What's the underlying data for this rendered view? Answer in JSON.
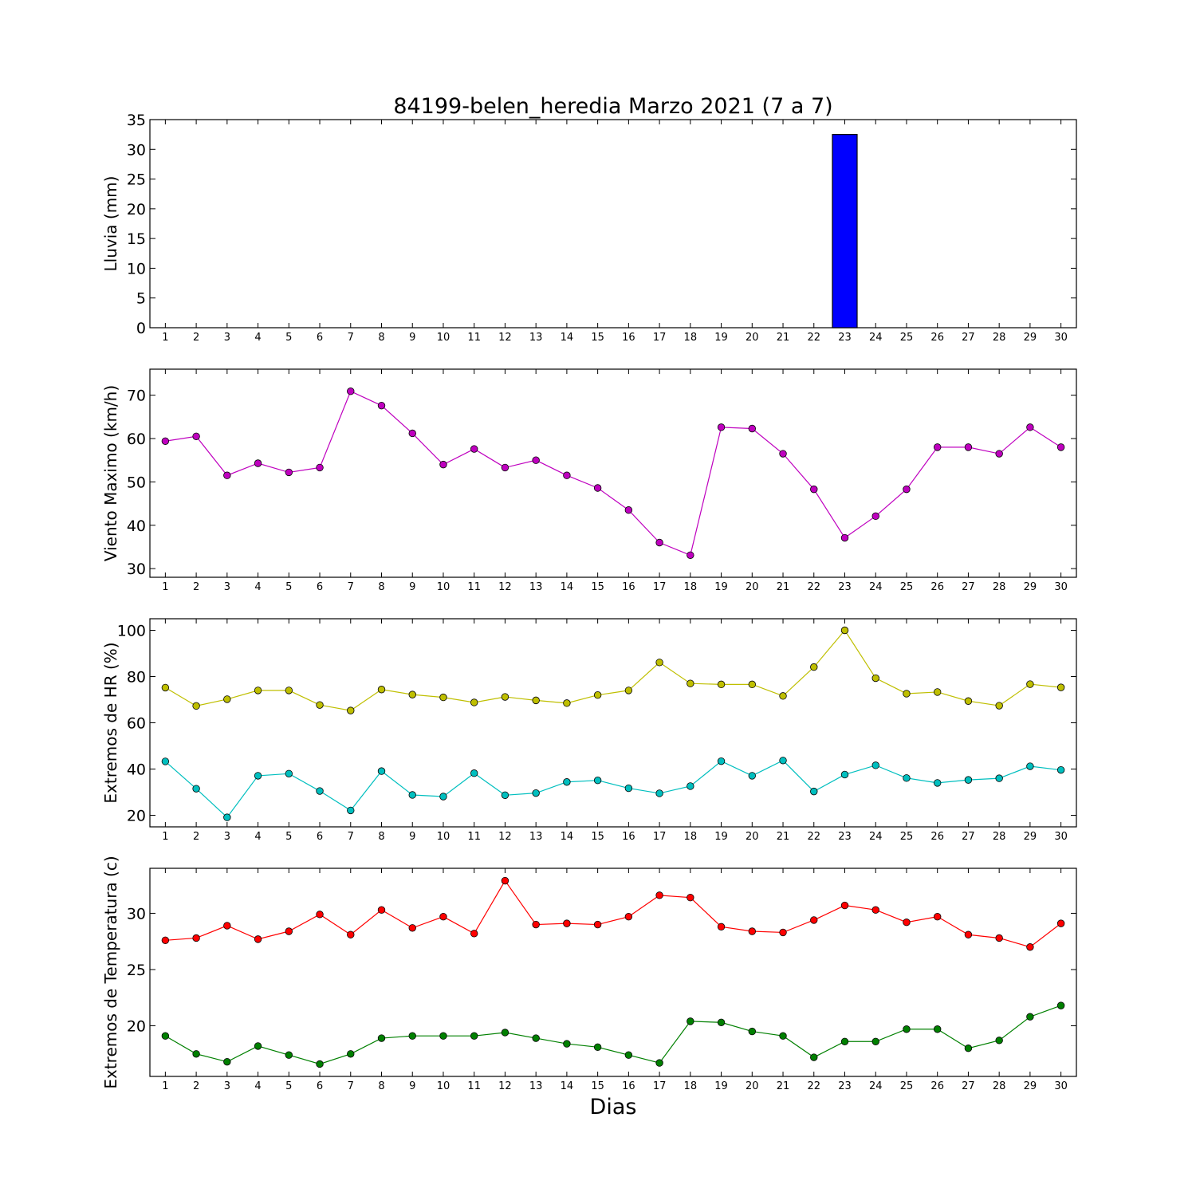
{
  "title": "84199-belen_heredia Marzo 2021  (7 a 7)",
  "xlabel": "Dias",
  "chart_data": [
    {
      "type": "bar",
      "ylabel": "Lluvia (mm)",
      "x": [
        1,
        2,
        3,
        4,
        5,
        6,
        7,
        8,
        9,
        10,
        11,
        12,
        13,
        14,
        15,
        16,
        17,
        18,
        19,
        20,
        21,
        22,
        23,
        24,
        25,
        26,
        27,
        28,
        29,
        30
      ],
      "values": [
        0,
        0,
        0,
        0,
        0,
        0,
        0,
        0,
        0,
        0,
        0,
        0,
        0,
        0,
        0,
        0,
        0,
        0,
        0,
        0,
        0,
        0,
        32.5,
        0,
        0,
        0,
        0,
        0,
        0,
        0
      ],
      "ylim": [
        0,
        35
      ],
      "yticks": [
        0,
        5,
        10,
        15,
        20,
        25,
        30,
        35
      ],
      "colors": {
        "bar": "#0000ff"
      }
    },
    {
      "type": "line",
      "ylabel": "Viento Maximo (km/h)",
      "x": [
        1,
        2,
        3,
        4,
        5,
        6,
        7,
        8,
        9,
        10,
        11,
        12,
        13,
        14,
        15,
        16,
        17,
        18,
        19,
        20,
        21,
        22,
        23,
        24,
        25,
        26,
        27,
        28,
        29,
        30
      ],
      "ylim": [
        28,
        76
      ],
      "yticks": [
        30,
        40,
        50,
        60,
        70
      ],
      "series": [
        {
          "values": [
            59.4,
            60.5,
            51.5,
            54.3,
            52.2,
            53.3,
            70.9,
            67.6,
            61.2,
            54.0,
            57.6,
            53.3,
            55.0,
            51.5,
            48.6,
            43.5,
            36.0,
            33.1,
            62.6,
            62.3,
            56.5,
            48.3,
            37.1,
            42.1,
            48.3,
            58.0,
            58.0,
            56.5,
            62.6,
            58.0
          ],
          "color": "#bf00bf"
        }
      ]
    },
    {
      "type": "line",
      "ylabel": "Extremos de HR (%)",
      "x": [
        1,
        2,
        3,
        4,
        5,
        6,
        7,
        8,
        9,
        10,
        11,
        12,
        13,
        14,
        15,
        16,
        17,
        18,
        19,
        20,
        21,
        22,
        23,
        24,
        25,
        26,
        27,
        28,
        29,
        30
      ],
      "ylim": [
        15,
        105
      ],
      "yticks": [
        20,
        40,
        60,
        80,
        100
      ],
      "series": [
        {
          "values": [
            75.2,
            67.3,
            70.2,
            74.0,
            74.0,
            67.7,
            65.3,
            74.4,
            72.2,
            71.0,
            68.8,
            71.2,
            69.7,
            68.5,
            72.0,
            74.0,
            86.1,
            77.0,
            76.6,
            76.6,
            71.6,
            84.1,
            100,
            79.3,
            72.6,
            73.3,
            69.4,
            67.4,
            76.7,
            75.3
          ],
          "color": "#bfbf00"
        },
        {
          "values": [
            43.3,
            31.5,
            19.1,
            37.1,
            38.0,
            30.5,
            22.1,
            39.1,
            28.8,
            28.1,
            38.2,
            28.7,
            29.6,
            34.4,
            35.1,
            31.7,
            29.5,
            32.6,
            43.4,
            37.1,
            43.7,
            30.3,
            37.6,
            41.6,
            36.1,
            34.0,
            35.3,
            36.0,
            41.2,
            39.6
          ],
          "color": "#00bfbf"
        }
      ]
    },
    {
      "type": "line",
      "ylabel": "Extremos de Temperatura (c)",
      "x": [
        1,
        2,
        3,
        4,
        5,
        6,
        7,
        8,
        9,
        10,
        11,
        12,
        13,
        14,
        15,
        16,
        17,
        18,
        19,
        20,
        21,
        22,
        23,
        24,
        25,
        26,
        27,
        28,
        29,
        30
      ],
      "ylim": [
        15.5,
        34.0
      ],
      "yticks": [
        20,
        25,
        30
      ],
      "series": [
        {
          "values": [
            27.6,
            27.8,
            28.9,
            27.7,
            28.4,
            29.9,
            28.1,
            30.3,
            28.7,
            29.7,
            28.2,
            32.9,
            29.0,
            29.1,
            29.0,
            29.7,
            31.6,
            31.4,
            28.8,
            28.4,
            28.3,
            29.4,
            30.7,
            30.3,
            29.2,
            29.7,
            28.1,
            27.8,
            27.0,
            29.1
          ],
          "color": "#ff0000"
        },
        {
          "values": [
            19.1,
            17.5,
            16.8,
            18.2,
            17.4,
            16.6,
            17.5,
            18.9,
            19.1,
            19.1,
            19.1,
            19.4,
            18.9,
            18.4,
            18.1,
            17.4,
            16.7,
            20.4,
            20.3,
            19.5,
            19.1,
            17.2,
            18.6,
            18.6,
            19.7,
            19.7,
            18.0,
            18.7,
            20.8,
            21.8
          ],
          "color": "#008000"
        }
      ]
    }
  ]
}
